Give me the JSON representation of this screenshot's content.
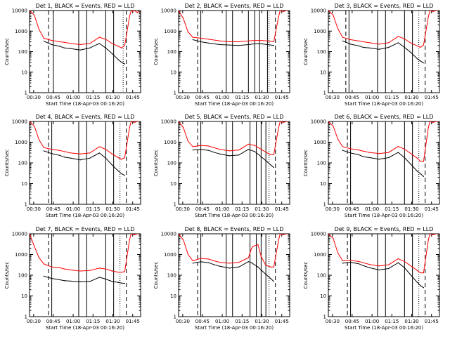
{
  "figure": {
    "shared": {
      "ylabel": "Counts/sec",
      "xlabel": "Start Time (18-Apr-03 00:16:20)",
      "ytick_labels": [
        "1",
        "10",
        "100",
        "1000",
        "10000"
      ],
      "xtick_labels": [
        "00:30",
        "00:45",
        "01:00",
        "01:15",
        "01:30",
        "01:45"
      ],
      "colors": {
        "events": "#000000",
        "lld": "#ff0000",
        "axes": "#000000"
      }
    }
  },
  "chart_data": [
    {
      "type": "line",
      "title": "Det 1, BLACK = Events, RED = LLD",
      "xlabel": "Start Time (18-Apr-03 00:16:20)",
      "ylabel": "Counts/sec",
      "x": [
        0,
        3,
        6,
        9,
        14,
        19,
        22,
        26,
        32,
        38,
        44,
        48,
        52,
        56,
        58,
        60,
        63,
        64,
        65,
        66,
        68,
        69
      ],
      "xlim": [
        0,
        70
      ],
      "yscale": "log",
      "ylim": [
        1,
        10000
      ],
      "series": [
        {
          "name": "LLD",
          "color": "#ff0000",
          "values": [
            10000,
            6000,
            1200,
            450,
            350,
            300,
            280,
            250,
            220,
            250,
            500,
            400,
            250,
            180,
            150,
            200,
            5000,
            10000,
            9000,
            10000,
            8000,
            10000
          ]
        },
        {
          "name": "Events",
          "color": "#000000",
          "values": [
            null,
            null,
            null,
            320,
            220,
            180,
            150,
            140,
            120,
            150,
            250,
            150,
            80,
            40,
            30,
            25,
            null,
            null,
            null,
            null,
            null,
            null
          ]
        }
      ],
      "markers": {
        "dashed": [
          12,
          61
        ],
        "dotted": [
          59
        ],
        "solid": [
          15,
          31,
          36,
          48,
          53
        ]
      }
    },
    {
      "type": "line",
      "title": "Det 2, BLACK = Events, RED = LLD",
      "xlabel": "Start Time (18-Apr-03 00:16:20)",
      "ylabel": "Counts/sec",
      "x": [
        0,
        3,
        6,
        9,
        14,
        19,
        26,
        32,
        38,
        44,
        48,
        52,
        56,
        60,
        63,
        64,
        66,
        68,
        69
      ],
      "xlim": [
        0,
        70
      ],
      "yscale": "log",
      "ylim": [
        1,
        10000
      ],
      "series": [
        {
          "name": "LLD",
          "color": "#ff0000",
          "values": [
            10000,
            4000,
            900,
            500,
            450,
            400,
            330,
            300,
            300,
            330,
            350,
            350,
            330,
            300,
            5000,
            10000,
            9000,
            10000,
            10000
          ]
        },
        {
          "name": "Events",
          "color": "#000000",
          "values": [
            null,
            null,
            null,
            380,
            300,
            260,
            220,
            210,
            200,
            220,
            240,
            240,
            220,
            200,
            null,
            null,
            null,
            null,
            null
          ]
        }
      ],
      "markers": {
        "dashed": [
          12,
          61
        ],
        "dotted": [
          57
        ],
        "solid": [
          14,
          30,
          34,
          44,
          48,
          51,
          56
        ]
      }
    },
    {
      "type": "line",
      "title": "Det 3, BLACK = Events, RED = LLD",
      "xlabel": "Start Time (18-Apr-03 00:16:20)",
      "ylabel": "Counts/sec",
      "x": [
        0,
        3,
        6,
        9,
        14,
        19,
        22,
        26,
        32,
        38,
        44,
        48,
        52,
        56,
        58,
        60,
        63,
        64,
        66,
        68,
        69
      ],
      "xlim": [
        0,
        70
      ],
      "yscale": "log",
      "ylim": [
        1,
        10000
      ],
      "series": [
        {
          "name": "LLD",
          "color": "#ff0000",
          "values": [
            10000,
            6000,
            1300,
            500,
            380,
            330,
            300,
            270,
            230,
            270,
            550,
            420,
            260,
            190,
            160,
            210,
            5000,
            10000,
            9000,
            10000,
            10000
          ]
        },
        {
          "name": "Events",
          "color": "#000000",
          "values": [
            null,
            null,
            null,
            330,
            230,
            190,
            160,
            150,
            130,
            160,
            270,
            160,
            90,
            45,
            35,
            28,
            null,
            null,
            null,
            null,
            null
          ]
        }
      ],
      "markers": {
        "dashed": [
          11,
          61
        ],
        "dotted": [
          57
        ],
        "solid": [
          13,
          31,
          36,
          48,
          53
        ]
      }
    },
    {
      "type": "line",
      "title": "Det 4, BLACK = Events, RED = LLD",
      "xlabel": "Start Time (18-Apr-03 00:16:20)",
      "ylabel": "Counts/sec",
      "x": [
        0,
        3,
        6,
        9,
        14,
        19,
        22,
        26,
        32,
        38,
        44,
        48,
        52,
        56,
        58,
        60,
        63,
        64,
        66,
        68,
        69
      ],
      "xlim": [
        0,
        70
      ],
      "yscale": "log",
      "ylim": [
        1,
        10000
      ],
      "series": [
        {
          "name": "LLD",
          "color": "#ff0000",
          "values": [
            10000,
            6000,
            1300,
            550,
            450,
            400,
            350,
            300,
            270,
            300,
            600,
            450,
            270,
            180,
            150,
            180,
            5000,
            10000,
            9000,
            10000,
            10000
          ]
        },
        {
          "name": "Events",
          "color": "#000000",
          "values": [
            null,
            null,
            null,
            380,
            280,
            230,
            190,
            170,
            140,
            170,
            300,
            170,
            80,
            40,
            30,
            25,
            null,
            null,
            null,
            null,
            null
          ]
        }
      ],
      "markers": {
        "dashed": [
          12,
          61
        ],
        "dotted": [
          57
        ],
        "solid": [
          14,
          31,
          36,
          48,
          53
        ]
      }
    },
    {
      "type": "line",
      "title": "Det 5, BLACK = Events, RED = LLD",
      "xlabel": "Start Time (18-Apr-03 00:16:20)",
      "ylabel": "Counts/sec",
      "x": [
        0,
        3,
        6,
        9,
        14,
        19,
        22,
        26,
        32,
        38,
        44,
        48,
        52,
        56,
        58,
        60,
        63,
        64,
        66,
        68,
        69
      ],
      "xlim": [
        0,
        70
      ],
      "yscale": "log",
      "ylim": [
        1,
        10000
      ],
      "series": [
        {
          "name": "LLD",
          "color": "#ff0000",
          "values": [
            10000,
            5000,
            1100,
            600,
            700,
            650,
            550,
            450,
            380,
            420,
            800,
            700,
            450,
            300,
            250,
            250,
            5000,
            10000,
            9000,
            10000,
            10000
          ]
        },
        {
          "name": "Events",
          "color": "#000000",
          "values": [
            null,
            null,
            null,
            420,
            450,
            400,
            330,
            270,
            220,
            240,
            450,
            350,
            200,
            110,
            80,
            60,
            null,
            null,
            null,
            null,
            null
          ]
        }
      ],
      "markers": {
        "dashed": [
          12,
          61
        ],
        "dotted": [
          57
        ],
        "solid": [
          14,
          30,
          34,
          45,
          49,
          52,
          55
        ]
      }
    },
    {
      "type": "line",
      "title": "Det 6, BLACK = Events, RED = LLD",
      "xlabel": "Start Time (18-Apr-03 00:16:20)",
      "ylabel": "Counts/sec",
      "x": [
        0,
        3,
        6,
        9,
        14,
        19,
        22,
        26,
        32,
        38,
        44,
        48,
        52,
        56,
        58,
        60,
        63,
        64,
        66,
        68,
        69
      ],
      "xlim": [
        0,
        70
      ],
      "yscale": "log",
      "ylim": [
        1,
        10000
      ],
      "series": [
        {
          "name": "LLD",
          "color": "#ff0000",
          "values": [
            10000,
            6000,
            1400,
            600,
            480,
            420,
            370,
            320,
            280,
            320,
            620,
            460,
            280,
            170,
            120,
            120,
            5000,
            10000,
            9000,
            10000,
            10000
          ]
        },
        {
          "name": "Events",
          "color": "#000000",
          "values": [
            null,
            null,
            null,
            400,
            300,
            250,
            200,
            180,
            150,
            180,
            320,
            180,
            85,
            40,
            30,
            22,
            null,
            null,
            null,
            null,
            null
          ]
        }
      ],
      "markers": {
        "dashed": [
          12,
          61
        ],
        "dotted": [
          57
        ],
        "solid": [
          14,
          31,
          36,
          48,
          53
        ]
      }
    },
    {
      "type": "line",
      "title": "Det 7, BLACK = Events, RED = LLD",
      "xlabel": "Start Time (18-Apr-03 00:16:20)",
      "ylabel": "Counts/sec",
      "x": [
        0,
        3,
        6,
        9,
        14,
        19,
        22,
        26,
        32,
        38,
        44,
        48,
        52,
        56,
        58,
        60,
        63,
        64,
        66,
        68,
        69
      ],
      "xlim": [
        0,
        70
      ],
      "yscale": "log",
      "ylim": [
        1,
        10000
      ],
      "series": [
        {
          "name": "LLD",
          "color": "#ff0000",
          "values": [
            10000,
            2500,
            700,
            350,
            250,
            230,
            200,
            180,
            160,
            170,
            220,
            200,
            160,
            140,
            140,
            150,
            5000,
            10000,
            9000,
            10000,
            10000
          ]
        },
        {
          "name": "Events",
          "color": "#000000",
          "values": [
            null,
            null,
            null,
            90,
            70,
            60,
            55,
            52,
            48,
            50,
            80,
            65,
            50,
            45,
            42,
            40,
            null,
            null,
            null,
            null,
            null
          ]
        }
      ],
      "markers": {
        "dashed": [
          12,
          61
        ],
        "dotted": [
          57
        ],
        "solid": [
          14,
          31,
          36,
          48,
          53
        ]
      }
    },
    {
      "type": "line",
      "title": "Det 8, BLACK = Events, RED = LLD",
      "xlabel": "Start Time (18-Apr-03 00:16:20)",
      "ylabel": "Counts/sec",
      "x": [
        0,
        3,
        6,
        9,
        14,
        19,
        22,
        26,
        32,
        38,
        44,
        46,
        47,
        50,
        52,
        55,
        58,
        60,
        63,
        64,
        66,
        68,
        69
      ],
      "xlim": [
        0,
        70
      ],
      "yscale": "log",
      "ylim": [
        1,
        10000
      ],
      "series": [
        {
          "name": "LLD",
          "color": "#ff0000",
          "values": [
            10000,
            5000,
            1000,
            500,
            650,
            600,
            500,
            420,
            380,
            420,
            700,
            2000,
            2500,
            3000,
            800,
            300,
            250,
            250,
            5000,
            10000,
            9000,
            10000,
            10000
          ]
        },
        {
          "name": "Events",
          "color": "#000000",
          "values": [
            null,
            null,
            null,
            380,
            450,
            400,
            330,
            270,
            220,
            250,
            450,
            400,
            350,
            250,
            180,
            110,
            70,
            50,
            null,
            null,
            null,
            null,
            null
          ]
        }
      ],
      "markers": {
        "dashed": [
          12,
          61
        ],
        "dotted": [
          57
        ],
        "solid": [
          14,
          30,
          34,
          45,
          49,
          52,
          55
        ]
      }
    },
    {
      "type": "line",
      "title": "Det 9, BLACK = Events, RED = LLD",
      "xlabel": "Start Time (18-Apr-03 00:16:20)",
      "ylabel": "Counts/sec",
      "x": [
        0,
        3,
        6,
        9,
        14,
        19,
        22,
        26,
        32,
        38,
        44,
        48,
        52,
        56,
        58,
        60,
        63,
        64,
        66,
        68,
        69
      ],
      "xlim": [
        0,
        70
      ],
      "yscale": "log",
      "ylim": [
        1,
        10000
      ],
      "series": [
        {
          "name": "LLD",
          "color": "#ff0000",
          "values": [
            10000,
            6000,
            1200,
            500,
            520,
            460,
            400,
            330,
            280,
            320,
            620,
            460,
            280,
            170,
            130,
            130,
            5000,
            10000,
            9000,
            10000,
            10000
          ]
        },
        {
          "name": "Events",
          "color": "#000000",
          "values": [
            null,
            null,
            null,
            380,
            420,
            360,
            290,
            230,
            180,
            210,
            400,
            230,
            100,
            45,
            32,
            25,
            null,
            null,
            null,
            null,
            null
          ]
        }
      ],
      "markers": {
        "dashed": [
          12,
          61
        ],
        "dotted": [
          57
        ],
        "solid": [
          14,
          31,
          36,
          48,
          53
        ]
      }
    }
  ]
}
